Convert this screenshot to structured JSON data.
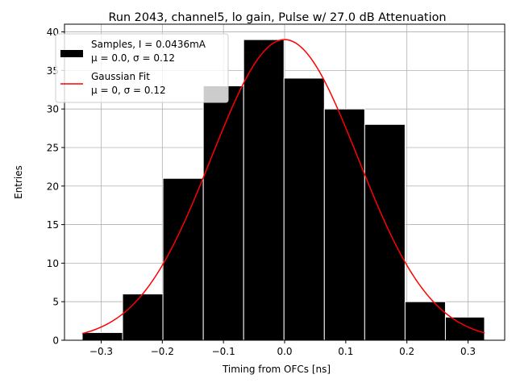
{
  "chart_data": {
    "type": "histogram",
    "title": "Run 2043, channel5, lo gain, Pulse w/ 27.0 dB Attenuation",
    "xlabel": "Timing from OFCs [ns]",
    "ylabel": "Entries",
    "xlim": [
      -0.36,
      0.36
    ],
    "ylim": [
      0,
      41
    ],
    "xticks": [
      -0.3,
      -0.2,
      -0.1,
      0.0,
      0.1,
      0.2,
      0.3
    ],
    "xtick_labels": [
      "−0.3",
      "−0.2",
      "−0.1",
      "0.0",
      "0.1",
      "0.2",
      "0.3"
    ],
    "yticks": [
      0,
      5,
      10,
      15,
      20,
      25,
      30,
      35,
      40
    ],
    "ytick_labels": [
      "0",
      "5",
      "10",
      "15",
      "20",
      "25",
      "30",
      "35",
      "40"
    ],
    "grid": true,
    "bins": [
      {
        "x0": -0.331,
        "x1": -0.265,
        "count": 1
      },
      {
        "x0": -0.265,
        "x1": -0.199,
        "count": 6
      },
      {
        "x0": -0.199,
        "x1": -0.133,
        "count": 21
      },
      {
        "x0": -0.133,
        "x1": -0.067,
        "count": 33
      },
      {
        "x0": -0.067,
        "x1": -0.001,
        "count": 39
      },
      {
        "x0": -0.001,
        "x1": 0.065,
        "count": 34
      },
      {
        "x0": 0.065,
        "x1": 0.131,
        "count": 30
      },
      {
        "x0": 0.131,
        "x1": 0.197,
        "count": 28
      },
      {
        "x0": 0.197,
        "x1": 0.263,
        "count": 5
      },
      {
        "x0": 0.263,
        "x1": 0.327,
        "count": 3
      }
    ],
    "fit": {
      "type": "gaussian",
      "amplitude": 39,
      "mu": 0.0,
      "sigma": 0.12,
      "x_range": [
        -0.331,
        0.327
      ],
      "color": "#ff0000"
    },
    "bar_color": "#000000",
    "bar_edge_color": "#ffffff",
    "grid_color": "#b0b0b0",
    "legend": {
      "position": "upper-left",
      "entries": [
        {
          "type": "patch",
          "color": "#000000",
          "line1": "Samples, I = 0.0436mA",
          "line2": "μ = 0.0, σ = 0.12"
        },
        {
          "type": "line",
          "color": "#ff0000",
          "line1": "Gaussian Fit",
          "line2": "μ = 0, σ = 0.12"
        }
      ]
    }
  }
}
